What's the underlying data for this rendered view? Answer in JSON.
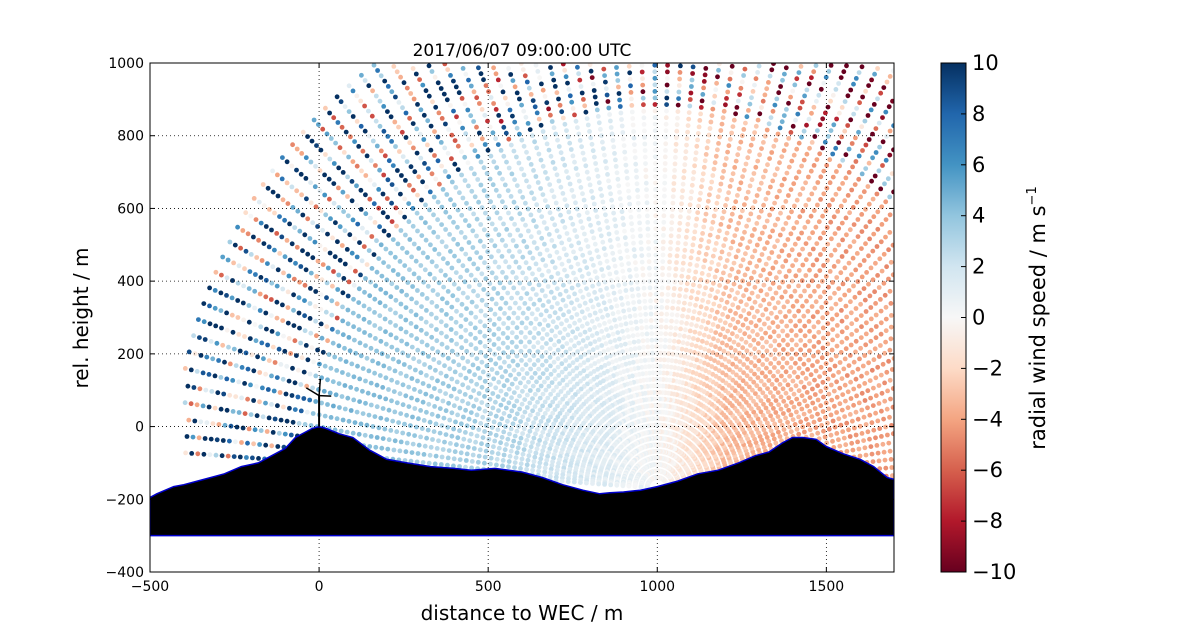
{
  "chart_data": {
    "type": "heatmap",
    "subtype": "lidar-rhi-scan",
    "title": "2017/06/07 09:00:00 UTC",
    "xlabel": "distance to WEC / m",
    "ylabel": "rel. height / m",
    "xlim": [
      -500,
      1700
    ],
    "ylim": [
      -400,
      1000
    ],
    "x_ticks": [
      -500,
      0,
      500,
      1000,
      1500
    ],
    "y_ticks": [
      -400,
      -200,
      0,
      200,
      400,
      600,
      800,
      1000
    ],
    "x_tick_labels": [
      "−500",
      "0",
      "500",
      "1000",
      "1500"
    ],
    "y_tick_labels": [
      "−400",
      "−200",
      "0",
      "200",
      "400",
      "600",
      "800",
      "1000"
    ],
    "grid": true,
    "colorbar": {
      "label": "radial wind speed / m s",
      "label_superscript": "−1",
      "colormap": "RdBu",
      "range": [
        -10,
        10
      ],
      "ticks": [
        10,
        8,
        6,
        4,
        2,
        0,
        -2,
        -4,
        -6,
        -8,
        -10
      ],
      "tick_labels": [
        "10",
        "8",
        "6",
        "4",
        "2",
        "0",
        "−2",
        "−4",
        "−6",
        "−8",
        "−10"
      ]
    },
    "lidar_origin": {
      "x": 1000,
      "y": -170
    },
    "turbine": {
      "x": 0,
      "hub_height": 85
    },
    "wind_field": [
      {
        "distance": -300,
        "radial_speed": 5.0
      },
      {
        "distance": 0,
        "radial_speed": 4.5
      },
      {
        "distance": 500,
        "radial_speed": 3.0
      },
      {
        "distance": 800,
        "radial_speed": 1.5
      },
      {
        "distance": 1000,
        "radial_speed": 0.0
      },
      {
        "distance": 1200,
        "radial_speed": -3.0
      },
      {
        "distance": 1500,
        "radial_speed": -4.0
      },
      {
        "distance": 1700,
        "radial_speed": -4.2
      }
    ],
    "terrain_profile": {
      "distance": [
        -500,
        -480,
        -430,
        -400,
        -360,
        -320,
        -280,
        -230,
        -180,
        -140,
        -100,
        -70,
        -40,
        -20,
        0,
        20,
        60,
        100,
        150,
        200,
        260,
        330,
        400,
        450,
        520,
        600,
        660,
        720,
        780,
        830,
        860,
        900,
        950,
        1000,
        1060,
        1120,
        1180,
        1240,
        1290,
        1330,
        1370,
        1400,
        1430,
        1470,
        1500,
        1550,
        1600,
        1640,
        1680,
        1700
      ],
      "height": [
        -195,
        -185,
        -165,
        -160,
        -150,
        -140,
        -130,
        -110,
        -100,
        -80,
        -60,
        -30,
        -15,
        -5,
        0,
        -5,
        -20,
        -30,
        -65,
        -90,
        -100,
        -110,
        -115,
        -120,
        -115,
        -125,
        -140,
        -160,
        -175,
        -185,
        -182,
        -180,
        -175,
        -165,
        -150,
        -130,
        -120,
        -100,
        -80,
        -70,
        -45,
        -30,
        -30,
        -35,
        -55,
        -75,
        -90,
        -110,
        -140,
        -145
      ],
      "base": -300
    }
  }
}
